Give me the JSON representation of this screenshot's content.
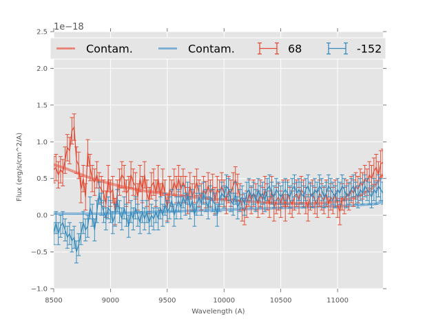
{
  "chart_data": {
    "type": "line",
    "title": "",
    "xlabel": "Wavelength (A)",
    "ylabel": "Flux (erg/s/cm^2/A)",
    "y_offset_label": "1e−18",
    "xlim": [
      8500,
      11400
    ],
    "ylim": [
      -1.0,
      2.5
    ],
    "grid": true,
    "legend_placement": "top, inside axes, single row spanning full width",
    "x_ticks": [
      8500,
      9000,
      9500,
      10000,
      10500,
      11000
    ],
    "x_tick_labels": [
      "8500",
      "9000",
      "9500",
      "10000",
      "10500",
      "11000"
    ],
    "y_ticks": [
      -1.0,
      -0.5,
      0.0,
      0.5,
      1.0,
      1.5,
      2.0,
      2.5
    ],
    "y_tick_labels": [
      "−1.0",
      "−0.5",
      "0.0",
      "0.5",
      "1.0",
      "1.5",
      "2.0",
      "2.5"
    ],
    "legend": [
      {
        "label": "Contam.",
        "kind": "line",
        "color": "#e8877a"
      },
      {
        "label": "Contam.",
        "kind": "line",
        "color": "#7eb0d5"
      },
      {
        "label": "68",
        "kind": "errorbar",
        "color": "#e24a33"
      },
      {
        "label": "-152",
        "kind": "errorbar",
        "color": "#348abd"
      }
    ],
    "colors": {
      "background": "#e5e5e5",
      "grid": "#ffffff",
      "series_68": "#e24a33",
      "series_m152": "#348abd",
      "contam_68": "#e8877a",
      "contam_m152": "#7eb0d5"
    },
    "contam_series": [
      {
        "name": "Contam. (68)",
        "x": [
          8500,
          8600,
          8700,
          8800,
          8900,
          9000,
          9100,
          9200,
          9300,
          9400,
          9500,
          9600,
          9700,
          9800,
          9900,
          10000,
          10100,
          10200,
          10300,
          10400,
          10500,
          10600,
          10700,
          10800,
          10900,
          11000,
          11100,
          11200,
          11300,
          11350,
          11400
        ],
        "y": [
          0.69,
          0.64,
          0.58,
          0.52,
          0.47,
          0.43,
          0.39,
          0.36,
          0.33,
          0.31,
          0.29,
          0.27,
          0.25,
          0.24,
          0.22,
          0.21,
          0.2,
          0.19,
          0.18,
          0.17,
          0.16,
          0.16,
          0.16,
          0.16,
          0.17,
          0.19,
          0.22,
          0.27,
          0.36,
          0.44,
          0.56
        ]
      },
      {
        "name": "Contam. (-152)",
        "x": [
          8500,
          8700,
          8900,
          9100,
          9300,
          9500,
          9700,
          9900,
          10100,
          10300,
          10500,
          10700,
          10900,
          11100,
          11300,
          11350,
          11400
        ],
        "y": [
          0.02,
          0.02,
          0.02,
          0.03,
          0.04,
          0.05,
          0.06,
          0.07,
          0.08,
          0.09,
          0.1,
          0.11,
          0.12,
          0.13,
          0.15,
          0.16,
          0.19
        ]
      }
    ],
    "series": [
      {
        "name": "68",
        "color": "#e24a33",
        "x": [
          8500,
          8520,
          8540,
          8560,
          8580,
          8600,
          8620,
          8640,
          8660,
          8680,
          8700,
          8720,
          8740,
          8760,
          8780,
          8800,
          8820,
          8840,
          8860,
          8880,
          8900,
          8920,
          8940,
          8960,
          8980,
          9000,
          9020,
          9040,
          9060,
          9080,
          9100,
          9120,
          9140,
          9160,
          9180,
          9200,
          9220,
          9240,
          9260,
          9280,
          9300,
          9320,
          9340,
          9360,
          9380,
          9400,
          9420,
          9440,
          9460,
          9480,
          9500,
          9520,
          9540,
          9560,
          9580,
          9600,
          9620,
          9640,
          9660,
          9680,
          9700,
          9720,
          9740,
          9760,
          9780,
          9800,
          9820,
          9840,
          9860,
          9880,
          9900,
          9920,
          9940,
          9960,
          9980,
          10000,
          10020,
          10040,
          10060,
          10080,
          10100,
          10120,
          10140,
          10160,
          10180,
          10200,
          10220,
          10240,
          10260,
          10280,
          10300,
          10320,
          10340,
          10360,
          10380,
          10400,
          10420,
          10440,
          10460,
          10480,
          10500,
          10520,
          10540,
          10560,
          10580,
          10600,
          10620,
          10640,
          10660,
          10680,
          10700,
          10720,
          10740,
          10760,
          10780,
          10800,
          10820,
          10840,
          10860,
          10880,
          10900,
          10920,
          10940,
          10960,
          10980,
          11000,
          11020,
          11040,
          11060,
          11080,
          11100,
          11120,
          11140,
          11160,
          11180,
          11200,
          11220,
          11240,
          11260,
          11280,
          11300,
          11320,
          11340,
          11360,
          11380,
          11400
        ],
        "y": [
          0.62,
          0.65,
          0.55,
          0.62,
          0.58,
          0.75,
          0.92,
          0.88,
          1.15,
          1.2,
          0.75,
          0.68,
          0.35,
          0.5,
          0.25,
          0.85,
          0.65,
          0.5,
          0.45,
          0.55,
          0.4,
          0.35,
          0.3,
          0.15,
          0.5,
          0.3,
          0.35,
          0.05,
          0.3,
          0.45,
          0.55,
          0.5,
          0.3,
          0.35,
          0.55,
          0.45,
          0.4,
          0.25,
          0.5,
          0.35,
          0.55,
          0.3,
          0.2,
          0.4,
          0.45,
          0.3,
          0.5,
          0.25,
          0.45,
          0.3,
          0.1,
          0.35,
          0.3,
          0.45,
          0.35,
          0.5,
          0.35,
          0.45,
          0.35,
          0.2,
          0.4,
          0.25,
          0.35,
          0.45,
          0.3,
          0.25,
          0.35,
          0.28,
          0.4,
          0.3,
          0.38,
          0.2,
          0.35,
          0.3,
          0.4,
          0.3,
          0.2,
          0.35,
          0.3,
          0.4,
          0.48,
          0.38,
          0.25,
          0.1,
          0.05,
          0.15,
          0.3,
          0.2,
          0.3,
          0.25,
          0.15,
          0.3,
          0.2,
          0.35,
          0.25,
          0.15,
          0.35,
          0.1,
          0.2,
          0.25,
          0.15,
          0.3,
          0.1,
          0.3,
          0.2,
          0.15,
          0.25,
          0.3,
          0.2,
          0.35,
          0.3,
          0.2,
          0.1,
          0.25,
          0.3,
          0.2,
          0.15,
          0.3,
          0.25,
          0.2,
          0.3,
          0.15,
          0.25,
          0.2,
          0.3,
          0.15,
          0.05,
          0.25,
          0.2,
          0.3,
          0.25,
          0.35,
          0.3,
          0.4,
          0.35,
          0.45,
          0.4,
          0.5,
          0.45,
          0.55,
          0.5,
          0.6,
          0.65,
          0.55,
          0.7,
          0.72
        ],
        "yerr": 0.18
      },
      {
        "name": "-152",
        "color": "#348abd",
        "x": [
          8500,
          8520,
          8540,
          8560,
          8580,
          8600,
          8620,
          8640,
          8660,
          8680,
          8700,
          8720,
          8740,
          8760,
          8780,
          8800,
          8820,
          8840,
          8860,
          8880,
          8900,
          8920,
          8940,
          8960,
          8980,
          9000,
          9020,
          9040,
          9060,
          9080,
          9100,
          9120,
          9140,
          9160,
          9180,
          9200,
          9220,
          9240,
          9260,
          9280,
          9300,
          9320,
          9340,
          9360,
          9380,
          9400,
          9420,
          9440,
          9460,
          9480,
          9500,
          9520,
          9540,
          9560,
          9580,
          9600,
          9620,
          9640,
          9660,
          9680,
          9700,
          9720,
          9740,
          9760,
          9780,
          9800,
          9820,
          9840,
          9860,
          9880,
          9900,
          9920,
          9940,
          9960,
          9980,
          10000,
          10020,
          10040,
          10060,
          10080,
          10100,
          10120,
          10140,
          10160,
          10180,
          10200,
          10220,
          10240,
          10260,
          10280,
          10300,
          10320,
          10340,
          10360,
          10380,
          10400,
          10420,
          10440,
          10460,
          10480,
          10500,
          10520,
          10540,
          10560,
          10580,
          10600,
          10620,
          10640,
          10660,
          10680,
          10700,
          10720,
          10740,
          10760,
          10780,
          10800,
          10820,
          10840,
          10860,
          10880,
          10900,
          10920,
          10940,
          10960,
          10980,
          11000,
          11020,
          11040,
          11060,
          11080,
          11100,
          11120,
          11140,
          11160,
          11180,
          11200,
          11220,
          11240,
          11260,
          11280,
          11300,
          11320,
          11340,
          11360,
          11380,
          11400
        ],
        "y": [
          -0.25,
          -0.1,
          -0.25,
          -0.15,
          -0.1,
          -0.2,
          -0.3,
          -0.25,
          -0.35,
          -0.3,
          -0.5,
          -0.4,
          -0.25,
          -0.1,
          -0.2,
          -0.15,
          0.1,
          0.0,
          -0.2,
          0.05,
          0.3,
          0.15,
          0.05,
          -0.05,
          0.1,
          0.05,
          -0.1,
          0.0,
          0.2,
          0.05,
          -0.05,
          0.1,
          0.0,
          -0.15,
          0.05,
          -0.05,
          0.1,
          0.0,
          -0.1,
          0.05,
          -0.05,
          0.05,
          -0.1,
          0.0,
          -0.05,
          0.05,
          -0.05,
          0.1,
          0.0,
          0.15,
          0.05,
          0.1,
          0.2,
          0.0,
          0.1,
          0.2,
          0.1,
          0.25,
          0.15,
          0.3,
          0.1,
          0.2,
          0.0,
          0.15,
          0.25,
          0.15,
          0.3,
          0.2,
          0.1,
          0.25,
          0.2,
          0.15,
          0.0,
          0.2,
          0.3,
          0.25,
          0.4,
          0.35,
          0.2,
          0.15,
          0.3,
          0.1,
          0.2,
          0.25,
          0.15,
          0.3,
          0.35,
          0.25,
          0.3,
          0.2,
          0.35,
          0.25,
          0.3,
          0.2,
          0.35,
          0.4,
          0.3,
          0.25,
          0.35,
          0.3,
          0.25,
          0.3,
          0.35,
          0.3,
          0.25,
          0.35,
          0.4,
          0.3,
          0.35,
          0.3,
          0.25,
          0.35,
          0.4,
          0.3,
          0.25,
          0.35,
          0.3,
          0.4,
          0.35,
          0.25,
          0.3,
          0.4,
          0.35,
          0.3,
          0.25,
          0.35,
          0.3,
          0.4,
          0.35,
          0.25,
          0.3,
          0.35,
          0.4,
          0.3,
          0.25,
          0.35,
          0.3,
          0.4,
          0.35,
          0.3,
          0.25,
          0.35,
          0.3,
          0.4,
          0.35,
          0.3
        ],
        "yerr": 0.15
      }
    ]
  }
}
